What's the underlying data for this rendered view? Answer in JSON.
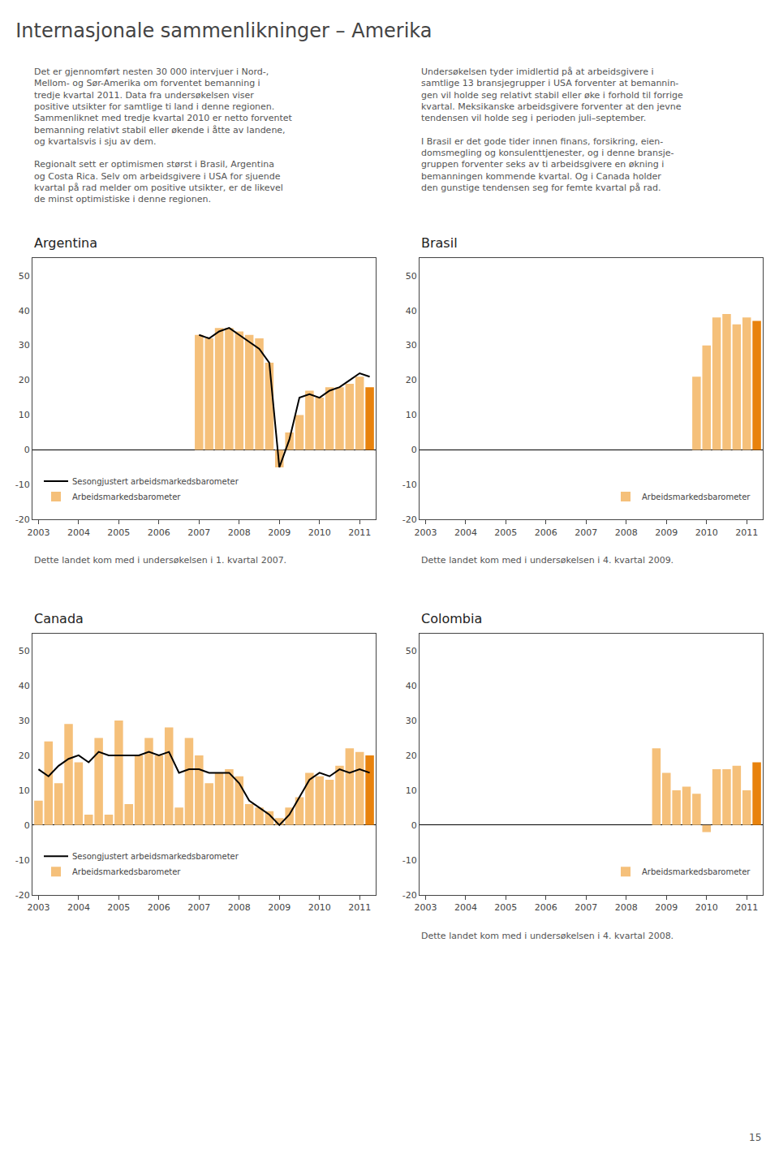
{
  "title": "Internasjonale sammenlikninger – Amerika",
  "annotations": [
    "Det er gjennomført nesten 30 000 intervjuer i Nord-,\nMellom- og Sør-Amerika om forventet bemanning i\ntredje kvartal 2011. Data fra undersøkelsen viser\npositive utsikter for samtlige ti land i denne regionen.\nSammenliknet med tredje kvartal 2010 er netto forventet\nbemanning relativt stabil eller økende i åtte av landene,\nog kvartalsvis i sju av dem.\n\nRegionalt sett er optimismen størst i Brasil, Argentina\nog Costa Rica. Selv om arbeidsgivere i USA for sjuende\nkvartal på rad melder om positive utsikter, er de likevel\nde minst optimistiske i denne regionen.",
    "Undersøkelsen tyder imidlertid på at arbeidsgivere i\nsamtlige 13 bransjegrupper i USA forventer at bemannin-\ngen vil holde seg relativt stabil eller øke i forhold til forrige\nkvartal. Meksikanske arbeidsgivere forventer at den jevne\ntendensen vil holde seg i perioden juli–september.\n\nI Brasil er det gode tider innen finans, forsikring, eien-\ndomsmegling og konsulenttjenester, og i denne bransje-\ngruppen forventer seks av ti arbeidsgivere en økning i\nbemanningen kommende kvartal. Og i Canada holder\nden gunstige tendensen seg for femte kvartal på rad.",
    "15"
  ],
  "chart_data": [
    {
      "type": "bar",
      "title": "Argentina",
      "subtitle": "Dette landet kom med i undersøkelsen i 1. kvartal 2007.",
      "categories": [
        "2003",
        null,
        null,
        null,
        "2004",
        null,
        null,
        null,
        "2005",
        null,
        null,
        null,
        "2006",
        null,
        null,
        null,
        "2007",
        null,
        null,
        null,
        "2008",
        null,
        null,
        null,
        "2009",
        null,
        null,
        null,
        "2010",
        null,
        null,
        null,
        "2011",
        null
      ],
      "series": [
        {
          "name": "Sesongjustert arbeidsmarkedsbarometer",
          "type": "line",
          "color": "#000000",
          "values": [
            null,
            null,
            null,
            null,
            null,
            null,
            null,
            null,
            null,
            null,
            null,
            null,
            null,
            null,
            null,
            null,
            33,
            32,
            34,
            35,
            33,
            31,
            29,
            25,
            -5,
            3,
            15,
            16,
            15,
            17,
            18,
            20,
            22,
            21
          ]
        },
        {
          "name": "Arbeidsmarkedsbarometer",
          "type": "bar",
          "colors": [
            "#F5C07A",
            "#F5C07A",
            "#F5C07A",
            "#F5C07A",
            "#F5C07A",
            "#F5C07A",
            "#F5C07A",
            "#F5C07A",
            "#F5C07A",
            "#F5C07A",
            "#F5C07A",
            "#F5C07A",
            "#F5C07A",
            "#F5C07A",
            "#F5C07A",
            "#F5C07A",
            "#F5C07A",
            "#F5C07A",
            "#F5C07A",
            "#F5C07A",
            "#F5C07A",
            "#F5C07A",
            "#F5C07A",
            "#F5C07A",
            "#F5C07A",
            "#F5C07A",
            "#F5C07A",
            "#F5C07A",
            "#F5C07A",
            "#F5C07A",
            "#F5C07A",
            "#F5C07A",
            "#F5C07A",
            "#E8820C"
          ],
          "values": [
            0,
            0,
            0,
            0,
            0,
            0,
            0,
            0,
            0,
            0,
            0,
            0,
            0,
            0,
            0,
            0,
            33,
            32,
            35,
            35,
            34,
            33,
            32,
            25,
            -5,
            5,
            10,
            17,
            15,
            18,
            18,
            19,
            21,
            18
          ]
        }
      ],
      "ylim": [
        -20,
        55
      ],
      "yticks": [
        -20,
        -10,
        0,
        10,
        20,
        30,
        40,
        50
      ],
      "grid": false,
      "legend": "lower left"
    },
    {
      "type": "bar",
      "title": "Brasil",
      "subtitle": "Dette landet kom med i undersøkelsen i 4. kvartal 2009.",
      "categories": [
        "2003",
        null,
        null,
        null,
        "2004",
        null,
        null,
        null,
        "2005",
        null,
        null,
        null,
        "2006",
        null,
        null,
        null,
        "2007",
        null,
        null,
        null,
        "2008",
        null,
        null,
        null,
        "2009",
        null,
        null,
        null,
        "2010",
        null,
        null,
        null,
        "2011",
        null
      ],
      "series": [
        {
          "name": "Arbeidsmarkedsbarometer",
          "type": "bar",
          "colors": [
            "#F5C07A",
            "#F5C07A",
            "#F5C07A",
            "#F5C07A",
            "#F5C07A",
            "#F5C07A",
            "#F5C07A",
            "#F5C07A",
            "#F5C07A",
            "#F5C07A",
            "#F5C07A",
            "#F5C07A",
            "#F5C07A",
            "#F5C07A",
            "#F5C07A",
            "#F5C07A",
            "#F5C07A",
            "#F5C07A",
            "#F5C07A",
            "#F5C07A",
            "#F5C07A",
            "#F5C07A",
            "#F5C07A",
            "#F5C07A",
            "#F5C07A",
            "#F5C07A",
            "#F5C07A",
            "#F5C07A",
            "#F5C07A",
            "#F5C07A",
            "#F5C07A",
            "#F5C07A",
            "#F5C07A",
            "#E8820C"
          ],
          "values": [
            0,
            0,
            0,
            0,
            0,
            0,
            0,
            0,
            0,
            0,
            0,
            0,
            0,
            0,
            0,
            0,
            0,
            0,
            0,
            0,
            0,
            0,
            0,
            0,
            0,
            0,
            0,
            21,
            30,
            38,
            39,
            36,
            38,
            37
          ]
        }
      ],
      "ylim": [
        -20,
        55
      ],
      "yticks": [
        -20,
        -10,
        0,
        10,
        20,
        30,
        40,
        50
      ],
      "grid": false,
      "legend": "lower right"
    },
    {
      "type": "bar",
      "title": "Canada",
      "categories": [
        "2003",
        null,
        null,
        null,
        "2004",
        null,
        null,
        null,
        "2005",
        null,
        null,
        null,
        "2006",
        null,
        null,
        null,
        "2007",
        null,
        null,
        null,
        "2008",
        null,
        null,
        null,
        "2009",
        null,
        null,
        null,
        "2010",
        null,
        null,
        null,
        "2011",
        null
      ],
      "series": [
        {
          "name": "Sesongjustert arbeidsmarkedsbarometer",
          "type": "line",
          "color": "#000000",
          "values": [
            16,
            14,
            17,
            19,
            20,
            18,
            21,
            20,
            20,
            20,
            20,
            21,
            20,
            21,
            15,
            16,
            16,
            15,
            15,
            15,
            12,
            7,
            5,
            3,
            0,
            3,
            8,
            13,
            15,
            14,
            16,
            15,
            16,
            15
          ]
        },
        {
          "name": "Arbeidsmarkedsbarometer",
          "type": "bar",
          "colors": [
            "#F5C07A",
            "#F5C07A",
            "#F5C07A",
            "#F5C07A",
            "#F5C07A",
            "#F5C07A",
            "#F5C07A",
            "#F5C07A",
            "#F5C07A",
            "#F5C07A",
            "#F5C07A",
            "#F5C07A",
            "#F5C07A",
            "#F5C07A",
            "#F5C07A",
            "#F5C07A",
            "#F5C07A",
            "#F5C07A",
            "#F5C07A",
            "#F5C07A",
            "#F5C07A",
            "#F5C07A",
            "#F5C07A",
            "#F5C07A",
            "#F5C07A",
            "#F5C07A",
            "#F5C07A",
            "#F5C07A",
            "#F5C07A",
            "#F5C07A",
            "#F5C07A",
            "#F5C07A",
            "#F5C07A",
            "#E8820C"
          ],
          "values": [
            7,
            24,
            12,
            29,
            18,
            3,
            25,
            3,
            30,
            6,
            20,
            25,
            20,
            28,
            5,
            25,
            20,
            12,
            15,
            16,
            14,
            6,
            5,
            4,
            2,
            5,
            8,
            15,
            14,
            13,
            17,
            22,
            21,
            20
          ]
        }
      ],
      "ylim": [
        -20,
        55
      ],
      "yticks": [
        -20,
        -10,
        0,
        10,
        20,
        30,
        40,
        50
      ],
      "grid": false,
      "legend": "lower left"
    },
    {
      "type": "bar",
      "title": "Colombia",
      "subtitle": "Dette landet kom med i undersøkelsen i 4. kvartal 2008.",
      "categories": [
        "2003",
        null,
        null,
        null,
        "2004",
        null,
        null,
        null,
        "2005",
        null,
        null,
        null,
        "2006",
        null,
        null,
        null,
        "2007",
        null,
        null,
        null,
        "2008",
        null,
        null,
        null,
        "2009",
        null,
        null,
        null,
        "2010",
        null,
        null,
        null,
        "2011",
        null
      ],
      "series": [
        {
          "name": "Arbeidsmarkedsbarometer",
          "type": "bar",
          "colors": [
            "#F5C07A",
            "#F5C07A",
            "#F5C07A",
            "#F5C07A",
            "#F5C07A",
            "#F5C07A",
            "#F5C07A",
            "#F5C07A",
            "#F5C07A",
            "#F5C07A",
            "#F5C07A",
            "#F5C07A",
            "#F5C07A",
            "#F5C07A",
            "#F5C07A",
            "#F5C07A",
            "#F5C07A",
            "#F5C07A",
            "#F5C07A",
            "#F5C07A",
            "#F5C07A",
            "#F5C07A",
            "#F5C07A",
            "#F5C07A",
            "#F5C07A",
            "#F5C07A",
            "#F5C07A",
            "#F5C07A",
            "#F5C07A",
            "#F5C07A",
            "#F5C07A",
            "#F5C07A",
            "#F5C07A",
            "#E8820C"
          ],
          "values": [
            0,
            0,
            0,
            0,
            0,
            0,
            0,
            0,
            0,
            0,
            0,
            0,
            0,
            0,
            0,
            0,
            0,
            0,
            0,
            0,
            0,
            0,
            0,
            22,
            15,
            10,
            11,
            9,
            -2,
            16,
            16,
            17,
            10,
            18
          ]
        }
      ],
      "ylim": [
        -20,
        55
      ],
      "yticks": [
        -20,
        -10,
        0,
        10,
        20,
        30,
        40,
        50
      ],
      "grid": false,
      "legend": "lower right"
    }
  ]
}
